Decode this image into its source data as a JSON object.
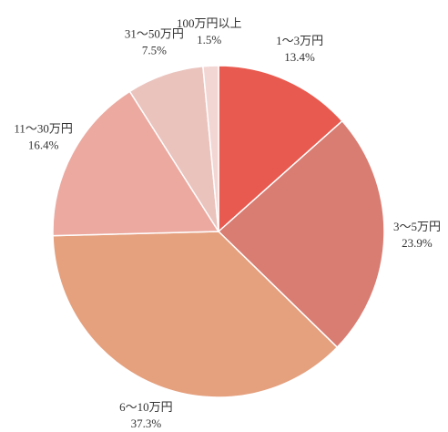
{
  "chart_data": {
    "type": "pie",
    "categories": [
      "1～3万円",
      "3～5万円",
      "6～10万円",
      "11～30万円",
      "31～50万円",
      "100万円以上"
    ],
    "values": [
      13.4,
      23.9,
      37.3,
      16.4,
      7.5,
      1.5
    ],
    "value_labels": [
      "13.4%",
      "23.9%",
      "37.3%",
      "16.4%",
      "7.5%",
      "1.5%"
    ],
    "colors": [
      "#e85a4f",
      "#d97d73",
      "#e5a07e",
      "#eba9a0",
      "#eac3bd",
      "#f2d6d4"
    ]
  }
}
